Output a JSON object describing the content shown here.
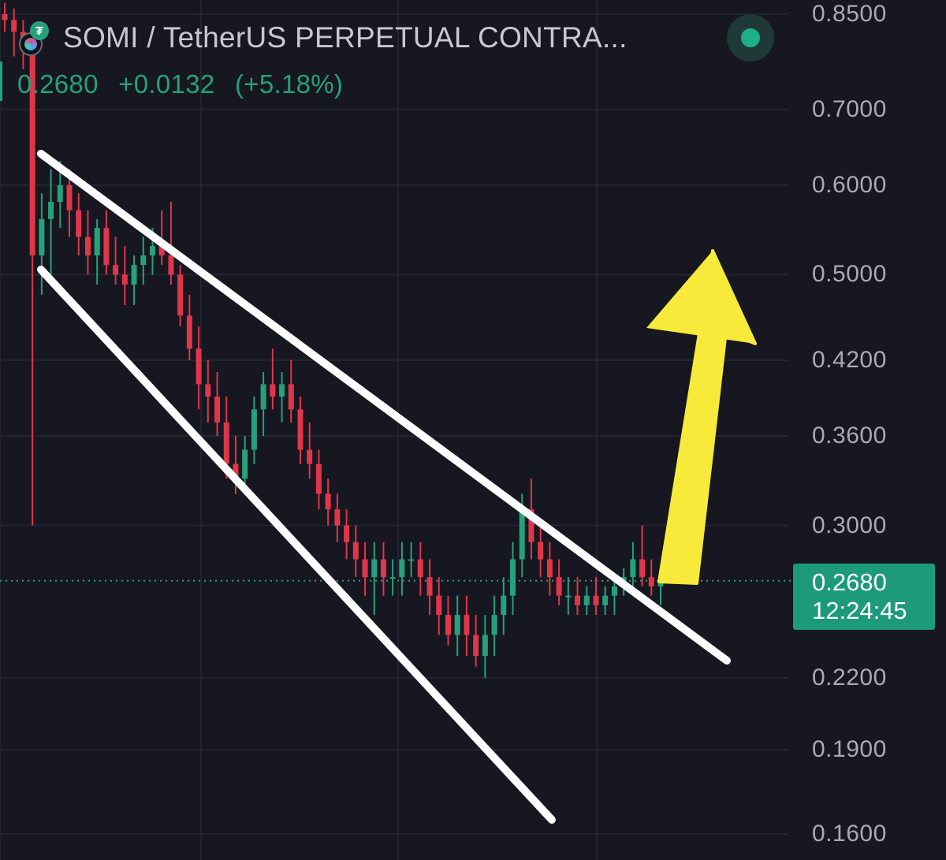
{
  "header": {
    "title": "SOMI / TetherUS PERPETUAL CONTRA...",
    "price": "0.2680",
    "change": "+0.0132",
    "change_pct": "(+5.18%)"
  },
  "price_tag": {
    "price": "0.2680",
    "countdown": "12:24:45"
  },
  "colors": {
    "background": "#161721",
    "up": "#26a17b",
    "down": "#e0364a",
    "trendline": "#ffffff",
    "arrow": "#f7ea3a",
    "grid": "#262834"
  },
  "icons": [
    "somi-coin-icon",
    "tether-icon",
    "live-status-icon"
  ],
  "chart_data": {
    "type": "candlestick",
    "y_axis": {
      "scale": "log",
      "ticks": [
        "0.8500",
        "0.7000",
        "0.6000",
        "0.5000",
        "0.4200",
        "0.3600",
        "0.3000",
        "0.2680",
        "0.2200",
        "0.1900",
        "0.1600"
      ]
    },
    "last_price": 0.268,
    "candles": [
      [
        0.85,
        0.87,
        0.82,
        0.84
      ],
      [
        0.84,
        0.86,
        0.78,
        0.82
      ],
      [
        0.82,
        0.84,
        0.76,
        0.79
      ],
      [
        0.79,
        0.82,
        0.3,
        0.52
      ],
      [
        0.52,
        0.59,
        0.48,
        0.56
      ],
      [
        0.56,
        0.62,
        0.5,
        0.58
      ],
      [
        0.58,
        0.63,
        0.55,
        0.6
      ],
      [
        0.6,
        0.62,
        0.54,
        0.57
      ],
      [
        0.57,
        0.59,
        0.52,
        0.54
      ],
      [
        0.54,
        0.57,
        0.5,
        0.52
      ],
      [
        0.52,
        0.56,
        0.49,
        0.55
      ],
      [
        0.55,
        0.57,
        0.5,
        0.51
      ],
      [
        0.51,
        0.54,
        0.49,
        0.5
      ],
      [
        0.5,
        0.53,
        0.47,
        0.49
      ],
      [
        0.49,
        0.52,
        0.47,
        0.51
      ],
      [
        0.51,
        0.54,
        0.49,
        0.52
      ],
      [
        0.52,
        0.55,
        0.5,
        0.53
      ],
      [
        0.53,
        0.57,
        0.51,
        0.52
      ],
      [
        0.52,
        0.58,
        0.49,
        0.5
      ],
      [
        0.5,
        0.51,
        0.45,
        0.46
      ],
      [
        0.46,
        0.48,
        0.42,
        0.43
      ],
      [
        0.43,
        0.45,
        0.38,
        0.4
      ],
      [
        0.4,
        0.42,
        0.37,
        0.39
      ],
      [
        0.39,
        0.41,
        0.36,
        0.37
      ],
      [
        0.37,
        0.39,
        0.33,
        0.34
      ],
      [
        0.34,
        0.36,
        0.32,
        0.33
      ],
      [
        0.33,
        0.36,
        0.32,
        0.35
      ],
      [
        0.35,
        0.39,
        0.34,
        0.38
      ],
      [
        0.38,
        0.41,
        0.36,
        0.4
      ],
      [
        0.4,
        0.43,
        0.38,
        0.39
      ],
      [
        0.39,
        0.41,
        0.37,
        0.4
      ],
      [
        0.4,
        0.42,
        0.37,
        0.38
      ],
      [
        0.38,
        0.39,
        0.34,
        0.35
      ],
      [
        0.35,
        0.37,
        0.33,
        0.34
      ],
      [
        0.34,
        0.35,
        0.31,
        0.32
      ],
      [
        0.32,
        0.33,
        0.3,
        0.31
      ],
      [
        0.31,
        0.32,
        0.29,
        0.3
      ],
      [
        0.3,
        0.31,
        0.28,
        0.29
      ],
      [
        0.29,
        0.3,
        0.27,
        0.28
      ],
      [
        0.28,
        0.29,
        0.26,
        0.27
      ],
      [
        0.27,
        0.29,
        0.25,
        0.28
      ],
      [
        0.28,
        0.29,
        0.26,
        0.27
      ],
      [
        0.27,
        0.28,
        0.26,
        0.27
      ],
      [
        0.27,
        0.29,
        0.26,
        0.28
      ],
      [
        0.28,
        0.29,
        0.27,
        0.28
      ],
      [
        0.28,
        0.29,
        0.26,
        0.27
      ],
      [
        0.27,
        0.28,
        0.25,
        0.26
      ],
      [
        0.26,
        0.27,
        0.24,
        0.25
      ],
      [
        0.25,
        0.26,
        0.235,
        0.24
      ],
      [
        0.24,
        0.26,
        0.23,
        0.25
      ],
      [
        0.25,
        0.26,
        0.23,
        0.24
      ],
      [
        0.24,
        0.25,
        0.225,
        0.23
      ],
      [
        0.23,
        0.25,
        0.22,
        0.24
      ],
      [
        0.24,
        0.26,
        0.23,
        0.25
      ],
      [
        0.25,
        0.27,
        0.24,
        0.26
      ],
      [
        0.26,
        0.29,
        0.25,
        0.28
      ],
      [
        0.28,
        0.32,
        0.27,
        0.31
      ],
      [
        0.31,
        0.33,
        0.28,
        0.29
      ],
      [
        0.29,
        0.3,
        0.27,
        0.28
      ],
      [
        0.28,
        0.29,
        0.26,
        0.27
      ],
      [
        0.27,
        0.28,
        0.255,
        0.26
      ],
      [
        0.26,
        0.27,
        0.25,
        0.26
      ],
      [
        0.26,
        0.27,
        0.25,
        0.255
      ],
      [
        0.255,
        0.265,
        0.25,
        0.26
      ],
      [
        0.26,
        0.27,
        0.25,
        0.255
      ],
      [
        0.255,
        0.265,
        0.25,
        0.26
      ],
      [
        0.26,
        0.27,
        0.25,
        0.265
      ],
      [
        0.265,
        0.275,
        0.26,
        0.27
      ],
      [
        0.27,
        0.29,
        0.26,
        0.28
      ],
      [
        0.28,
        0.3,
        0.265,
        0.27
      ],
      [
        0.27,
        0.28,
        0.26,
        0.265
      ],
      [
        0.265,
        0.27,
        0.255,
        0.268
      ]
    ],
    "drawings": {
      "upper_trendline": "descending resistance line",
      "lower_trendline": "descending support line",
      "arrow": "yellow up arrow"
    }
  }
}
